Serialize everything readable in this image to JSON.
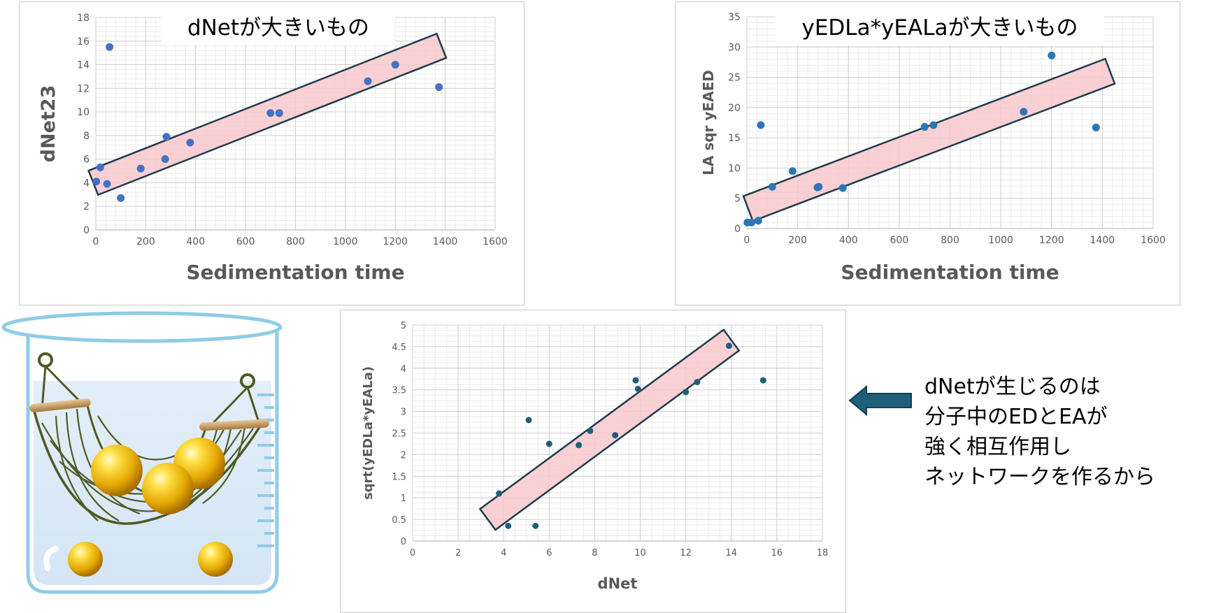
{
  "charts": {
    "chart1": {
      "type": "scatter",
      "title": "dNetが大きいもの",
      "xlabel": "Sedimentation time",
      "ylabel": "dNet23",
      "xlim": [
        0,
        1600
      ],
      "ylim": [
        0,
        18
      ],
      "xticks": [
        0,
        200,
        400,
        600,
        800,
        1000,
        1200,
        1400,
        1600
      ],
      "yticks": [
        0,
        2,
        4,
        6,
        8,
        10,
        12,
        14,
        16,
        18
      ],
      "points": [
        [
          2,
          4.1
        ],
        [
          18,
          5.3
        ],
        [
          45,
          3.9
        ],
        [
          55,
          15.5
        ],
        [
          100,
          2.7
        ],
        [
          180,
          5.2
        ],
        [
          278,
          6.0
        ],
        [
          283,
          7.9
        ],
        [
          378,
          7.4
        ],
        [
          700,
          9.9
        ],
        [
          735,
          9.9
        ],
        [
          1090,
          12.6
        ],
        [
          1200,
          14.0
        ],
        [
          1375,
          12.1
        ]
      ],
      "band": {
        "start": [
          -10,
          4.0
        ],
        "end": [
          1385,
          15.6
        ],
        "half_width": 1.1
      },
      "marker_color": "#4472c4",
      "band_fill": "#f8c8cc",
      "band_stroke": "#1f3b4d"
    },
    "chart2": {
      "type": "scatter",
      "title": "yEDLa*yEALaが大きいもの",
      "xlabel": "Sedimentation time",
      "ylabel": "LA sqr yEAED",
      "xlim": [
        0,
        1600
      ],
      "ylim": [
        0,
        35
      ],
      "xticks": [
        0,
        200,
        400,
        600,
        800,
        1000,
        1200,
        1400,
        1600
      ],
      "yticks": [
        0,
        5,
        10,
        15,
        20,
        25,
        30,
        35
      ],
      "points": [
        [
          2,
          1.0
        ],
        [
          18,
          1.0
        ],
        [
          45,
          1.3
        ],
        [
          55,
          17.1
        ],
        [
          100,
          6.9
        ],
        [
          180,
          9.5
        ],
        [
          278,
          6.8
        ],
        [
          283,
          6.9
        ],
        [
          378,
          6.7
        ],
        [
          700,
          16.8
        ],
        [
          735,
          17.1
        ],
        [
          1090,
          19.3
        ],
        [
          1200,
          28.6
        ],
        [
          1375,
          16.7
        ]
      ],
      "band": {
        "start": [
          5,
          3.3
        ],
        "end": [
          1430,
          26.0
        ],
        "half_width": 2.2
      },
      "marker_color": "#2e75b6",
      "band_fill": "#f8c8cc",
      "band_stroke": "#1f3b4d"
    },
    "chart3": {
      "type": "scatter",
      "title": "",
      "xlabel": "dNet",
      "ylabel": "sqrt(yEDLa*yEALa)",
      "xlim": [
        0,
        18
      ],
      "ylim": [
        0,
        5
      ],
      "xticks": [
        0,
        2,
        4,
        6,
        8,
        10,
        12,
        14,
        16,
        18
      ],
      "yticks": [
        0,
        0.5,
        1,
        1.5,
        2,
        2.5,
        3,
        3.5,
        4,
        4.5,
        5
      ],
      "yticklabels": [
        "0",
        "0.5",
        "1",
        "1.5",
        "2",
        "2.5",
        "3",
        "3.5",
        "4",
        "4.5",
        "5"
      ],
      "points": [
        [
          3.8,
          1.1
        ],
        [
          4.2,
          0.35
        ],
        [
          5.1,
          2.8
        ],
        [
          5.4,
          0.35
        ],
        [
          6.0,
          2.25
        ],
        [
          7.3,
          2.22
        ],
        [
          7.8,
          2.55
        ],
        [
          8.9,
          2.45
        ],
        [
          9.8,
          3.72
        ],
        [
          9.9,
          3.52
        ],
        [
          12.0,
          3.45
        ],
        [
          12.5,
          3.68
        ],
        [
          13.9,
          4.52
        ],
        [
          15.4,
          3.72
        ]
      ],
      "band": {
        "start": [
          3.3,
          0.5
        ],
        "end": [
          14.0,
          4.65
        ],
        "half_width": 0.3
      },
      "marker_color": "#1f5f7a",
      "band_fill": "#f8c8cc",
      "band_stroke": "#1f3b4d"
    }
  },
  "note": {
    "lines": [
      "dNetが生じるのは",
      "分子中のEDとEAが",
      "強く相互作用し",
      "ネットワークを作るから"
    ]
  },
  "arrow": {
    "direction": "left",
    "color": "#1f5f7a"
  },
  "illustration": {
    "icon": "beaker-hammock-with-spheres"
  }
}
